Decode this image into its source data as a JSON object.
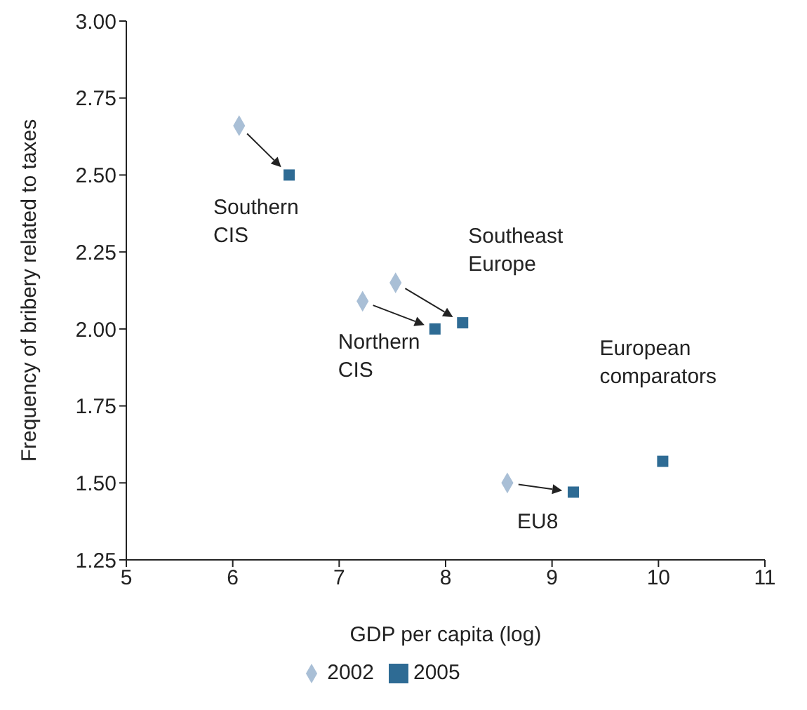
{
  "chart_data": {
    "type": "scatter",
    "xlabel": "GDP per capita (log)",
    "ylabel": "Frequency of bribery related to taxes",
    "xlim": [
      5,
      11
    ],
    "xticks": [
      5,
      6,
      7,
      8,
      9,
      10,
      11
    ],
    "ylim": [
      1.25,
      3
    ],
    "yticks": [
      {
        "value": 1.25,
        "label": "1.25"
      },
      {
        "value": 1.5,
        "label": "1.50"
      },
      {
        "value": 1.75,
        "label": "1.75"
      },
      {
        "value": 2,
        "label": "2.00"
      },
      {
        "value": 2.25,
        "label": "2.25"
      },
      {
        "value": 2.5,
        "label": "2.50"
      },
      {
        "value": 2.75,
        "label": "2.75"
      },
      {
        "value": 3,
        "label": "3.00"
      }
    ],
    "series": [
      {
        "name": "2002",
        "color": "#a9bfd6",
        "marker": "diamond",
        "x": [
          6.06,
          7.22,
          7.53,
          8.58,
          null
        ],
        "values": [
          2.66,
          2.09,
          2.15,
          1.5,
          null
        ]
      },
      {
        "name": "2005",
        "color": "#2e6b94",
        "marker": "square",
        "x": [
          6.53,
          7.9,
          8.16,
          9.2,
          10.04
        ],
        "values": [
          2.5,
          2.0,
          2.02,
          1.47,
          1.57
        ]
      }
    ],
    "annotations": [
      "Southern\nCIS",
      "Northern\nCIS",
      "Southeast\nEurope",
      "EU8",
      "European\ncomparators"
    ],
    "grid": false,
    "legend": "bottom"
  }
}
